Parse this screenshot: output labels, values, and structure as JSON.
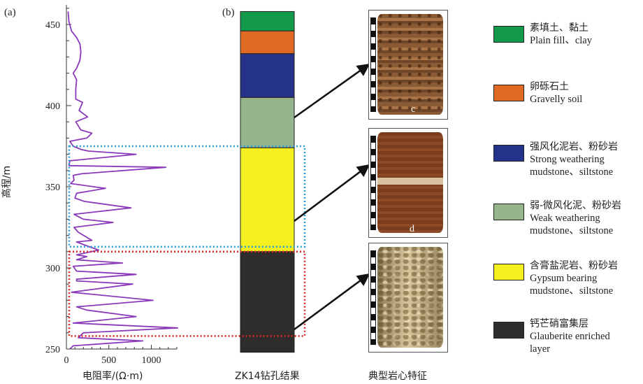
{
  "panel_a_label": "(a)",
  "panel_b_label": "(b)",
  "y_axis_label": "高程/m",
  "x_axis_label": "电阻率/(Ω·m)",
  "y_ticks": [
    "450",
    "400",
    "350",
    "300",
    "250"
  ],
  "x_ticks": [
    "0",
    "500",
    "1000"
  ],
  "column_caption": "ZK14钻孔结果",
  "cores_caption": "典型岩心特征",
  "core_letters": [
    "c",
    "d"
  ],
  "chart_data": {
    "type": "line",
    "xlabel": "电阻率/(Ω·m)",
    "ylabel": "高程/m",
    "xlim": [
      0,
      1300
    ],
    "ylim": [
      250,
      462
    ],
    "points": [
      [
        20,
        458
      ],
      [
        30,
        452
      ],
      [
        60,
        446
      ],
      [
        120,
        442
      ],
      [
        160,
        438
      ],
      [
        170,
        433
      ],
      [
        160,
        428
      ],
      [
        120,
        423
      ],
      [
        80,
        420
      ],
      [
        120,
        416
      ],
      [
        110,
        410
      ],
      [
        110,
        404
      ],
      [
        190,
        402
      ],
      [
        150,
        397
      ],
      [
        250,
        393
      ],
      [
        110,
        390
      ],
      [
        170,
        385
      ],
      [
        300,
        383
      ],
      [
        240,
        380
      ],
      [
        40,
        378
      ],
      [
        80,
        375
      ],
      [
        170,
        373
      ],
      [
        260,
        372
      ],
      [
        820,
        370
      ],
      [
        40,
        366
      ],
      [
        30,
        363
      ],
      [
        1170,
        362
      ],
      [
        180,
        358
      ],
      [
        80,
        357
      ],
      [
        90,
        354
      ],
      [
        50,
        352
      ],
      [
        460,
        349
      ],
      [
        120,
        346
      ],
      [
        100,
        343
      ],
      [
        210,
        341
      ],
      [
        760,
        337
      ],
      [
        90,
        333
      ],
      [
        200,
        330
      ],
      [
        550,
        328
      ],
      [
        90,
        325
      ],
      [
        140,
        322
      ],
      [
        300,
        317
      ],
      [
        120,
        316
      ],
      [
        220,
        314
      ],
      [
        380,
        311
      ],
      [
        120,
        308
      ],
      [
        240,
        307
      ],
      [
        120,
        305
      ],
      [
        660,
        303
      ],
      [
        80,
        301
      ],
      [
        120,
        298
      ],
      [
        820,
        296
      ],
      [
        120,
        293
      ],
      [
        120,
        292
      ],
      [
        780,
        290
      ],
      [
        60,
        285
      ],
      [
        1020,
        280
      ],
      [
        120,
        276
      ],
      [
        240,
        274
      ],
      [
        820,
        270
      ],
      [
        80,
        266
      ],
      [
        1310,
        263
      ],
      [
        200,
        260
      ],
      [
        140,
        257
      ],
      [
        900,
        255
      ],
      [
        80,
        252
      ],
      [
        40,
        250
      ]
    ],
    "boxes": [
      {
        "color": "#2a9fd6",
        "y_top": 375,
        "y_bottom": 313
      },
      {
        "color": "#d62828",
        "y_top": 310,
        "y_bottom": 258
      }
    ]
  },
  "strata": [
    {
      "name": "plain-fill-clay",
      "color": "#129a4a",
      "top": 458,
      "bottom": 446
    },
    {
      "name": "gravelly-soil",
      "color": "#e06a23",
      "top": 446,
      "bottom": 432
    },
    {
      "name": "strong-weathering",
      "color": "#25328a",
      "top": 432,
      "bottom": 405
    },
    {
      "name": "weak-weathering",
      "color": "#96b58c",
      "top": 405,
      "bottom": 374
    },
    {
      "name": "gypsum-bearing",
      "color": "#f4ef1e",
      "top": 374,
      "bottom": 310
    },
    {
      "name": "glauberite",
      "color": "#2f2d2c",
      "top": 310,
      "bottom": 248
    }
  ],
  "legend": [
    {
      "cn": "素填土、黏土",
      "en": [
        "Plain fill、clay"
      ],
      "color": "#129a4a"
    },
    {
      "cn": "卵砾石土",
      "en": [
        "Gravelly soil"
      ],
      "color": "#e06a23"
    },
    {
      "cn": "强风化泥岩、粉砂岩",
      "en": [
        "Strong weathering",
        "mudstone、siltstone"
      ],
      "color": "#25328a"
    },
    {
      "cn": "弱-微风化泥、粉砂岩",
      "en": [
        "Weak weathering",
        "mudstone、siltstone"
      ],
      "color": "#96b58c"
    },
    {
      "cn": "含膏盐泥岩、粉砂岩",
      "en": [
        "Gypsum bearing",
        "mudstone、siltstone"
      ],
      "color": "#f4ef1e"
    },
    {
      "cn": "钙芒硝富集层",
      "en": [
        "Glauberite enriched",
        "layer"
      ],
      "color": "#2f2d2c"
    }
  ],
  "colors": {
    "curve": "#8a3ab9",
    "arrow": "#111111"
  }
}
